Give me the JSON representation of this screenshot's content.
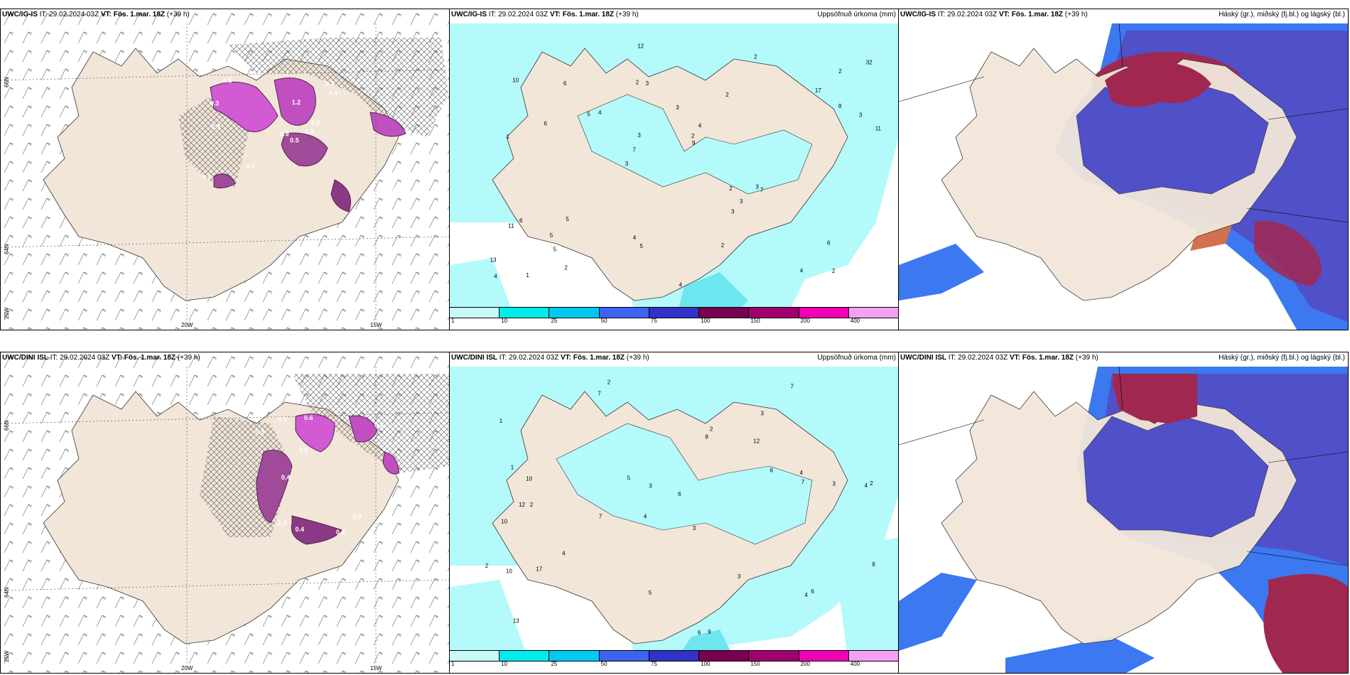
{
  "panels": {
    "p1": {
      "model": "UWC/IG-IS",
      "run_prefix": "IT:",
      "run": "29.02.2024 03Z",
      "vt_prefix": "VT:",
      "vt": "Fös. 1.mar. 18Z",
      "lead": "(+39 h)"
    },
    "p2": {
      "model": "UWC/IG-IS",
      "run_prefix": "IT:",
      "run": "29.02.2024 03Z",
      "vt_prefix": "VT:",
      "vt": "Fös. 1.mar. 18Z",
      "lead": "(+39 h)",
      "right_title": "Uppsöfnuð úrkoma (mm)"
    },
    "p3": {
      "model": "UWC/IG-IS",
      "run_prefix": "IT:",
      "run": "29.02.2024 03Z",
      "vt_prefix": "VT:",
      "vt": "Fös. 1.mar. 18Z",
      "lead": "(+39 h)",
      "right_title": "Háský (gr.), miðský (fj.bl.) og lágský (bl.)"
    },
    "p4": {
      "model": "UWC/DINI ISL",
      "run_prefix": "IT:",
      "run": "29.02.2024 03Z",
      "vt_prefix": "VT:",
      "vt": "Fös. 1.mar. 18Z",
      "lead": "(+39 h)"
    },
    "p5": {
      "model": "UWC/DINI ISL",
      "run_prefix": "IT:",
      "run": "29.02.2024 03Z",
      "vt_prefix": "VT:",
      "vt": "Fös. 1.mar. 18Z",
      "lead": "(+39 h)",
      "right_title": "Uppsöfnuð úrkoma (mm)"
    },
    "p6": {
      "model": "UWC/DINI ISL",
      "run_prefix": "IT:",
      "run": "29.02.2024 03Z",
      "vt_prefix": "VT:",
      "vt": "Fös. 1.mar. 18Z",
      "lead": "(+39 h)",
      "right_title": "Háský (gr.), miðský (fj.bl.) og lágský (bl.)"
    }
  },
  "axes": {
    "lat_66": "66N",
    "lat_64": "64N",
    "lat_25w": "25W",
    "lon_20": "20W",
    "lon_15": "15W"
  },
  "colorbar": {
    "ticks": [
      "1",
      "10",
      "25",
      "50",
      "75",
      "100",
      "150",
      "200",
      "400"
    ],
    "colors": [
      "#c8fafa",
      "#00ebeb",
      "#00c8f0",
      "#3c64f0",
      "#3232c8",
      "#780050",
      "#a0006e",
      "#f000b4",
      "#f5a0f5"
    ]
  },
  "colors": {
    "land": "#f2e6d9",
    "sea": "#ffffff",
    "precip_light": "#b4fafa",
    "precip_mid": "#6ee6f0",
    "snow_purple": "#d25ad2",
    "high_cloud": "#5050c8",
    "mid_cloud": "#3c78f0",
    "low_cloud": "#a02850"
  },
  "precip_labels_top": [
    "2",
    "1",
    "2",
    "3",
    "2",
    "1",
    "2",
    "3",
    "6",
    "4",
    "13",
    "5",
    "3",
    "4",
    "7",
    "10",
    "12",
    "11",
    "2",
    "8",
    "7",
    "4",
    "3",
    "6",
    "2",
    "5",
    "4",
    "6",
    "3",
    "4",
    "5",
    "6",
    "3",
    "2",
    "3",
    "2",
    "4",
    "5",
    "9",
    "11",
    "17",
    "32",
    "3",
    "2",
    "5"
  ],
  "precip_labels_bottom": [
    "2",
    "3",
    "4",
    "4",
    "3",
    "2",
    "1",
    "12",
    "10",
    "8",
    "6",
    "13",
    "7",
    "7",
    "6",
    "9",
    "5",
    "7",
    "6",
    "4",
    "10",
    "12",
    "2",
    "3",
    "2",
    "1",
    "3",
    "7",
    "6",
    "10",
    "4",
    "2",
    "17",
    "5",
    "3",
    "9",
    "4"
  ],
  "snow_labels_top": [
    "0.5",
    "0.3",
    "0.9",
    "0.6",
    "0.8",
    "0.7",
    "0.5",
    "1.2",
    "0.4",
    "0.3",
    "0.6",
    "0.5",
    "0.9"
  ],
  "snow_labels_bottom": [
    "0.4",
    "0.6",
    "1.4",
    "0.9",
    "0.5",
    "0.3",
    "0.4",
    "0.3",
    "0.6",
    "0.5",
    "0.4"
  ]
}
